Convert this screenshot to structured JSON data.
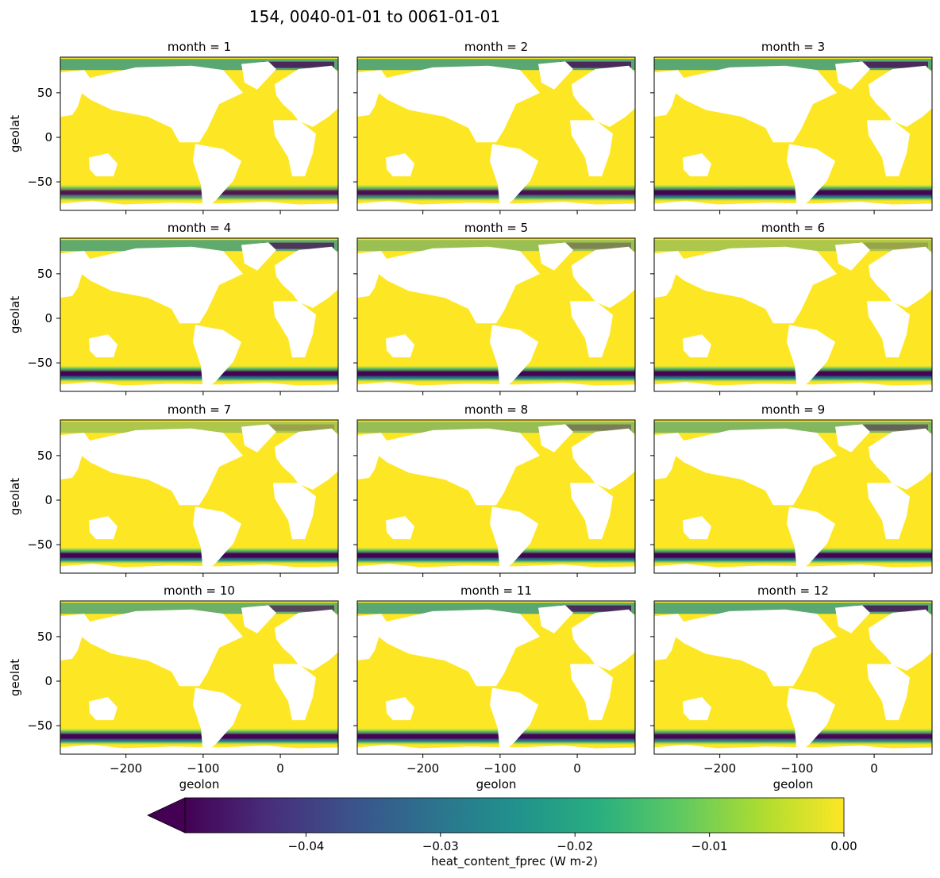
{
  "chart_data": {
    "type": "heatmap",
    "title": "154, 0040-01-01 to 0061-01-01",
    "facet_variable": "month",
    "panels": [
      {
        "title": "month = 1",
        "month": 1
      },
      {
        "title": "month = 2",
        "month": 2
      },
      {
        "title": "month = 3",
        "month": 3
      },
      {
        "title": "month = 4",
        "month": 4
      },
      {
        "title": "month = 5",
        "month": 5
      },
      {
        "title": "month = 6",
        "month": 6
      },
      {
        "title": "month = 7",
        "month": 7
      },
      {
        "title": "month = 8",
        "month": 8
      },
      {
        "title": "month = 9",
        "month": 9
      },
      {
        "title": "month = 10",
        "month": 10
      },
      {
        "title": "month = 11",
        "month": 11
      },
      {
        "title": "month = 12",
        "month": 12
      }
    ],
    "xlabel": "geolon",
    "ylabel": "geolat",
    "xlim": [
      -285,
      75
    ],
    "ylim": [
      -82,
      90
    ],
    "xticks": [
      -200,
      -100,
      0
    ],
    "xtick_labels": [
      "−200",
      "−100",
      "0"
    ],
    "yticks": [
      50,
      0,
      -50
    ],
    "ytick_labels": [
      "50",
      "0",
      "−50"
    ],
    "colorbar": {
      "label": "heat_content_fprec (W m-2)",
      "range": [
        -0.049,
        0.0
      ],
      "extend": "min",
      "colormap": "viridis",
      "ticks": [
        -0.04,
        -0.03,
        -0.02,
        -0.01,
        0.0
      ],
      "tick_labels": [
        "−0.04",
        "−0.03",
        "−0.02",
        "−0.01",
        "0.00"
      ]
    },
    "features": {
      "ocean_background_value": 0.0,
      "southern_ocean_band_min": [
        -0.035,
        -0.04,
        -0.049,
        -0.049,
        -0.049,
        -0.049,
        -0.049,
        -0.049,
        -0.049,
        -0.049,
        -0.049,
        -0.045
      ],
      "arctic_min": [
        -0.049,
        -0.049,
        -0.049,
        -0.045,
        -0.02,
        -0.012,
        -0.012,
        -0.022,
        -0.03,
        -0.04,
        -0.049,
        -0.049
      ]
    },
    "colors": {
      "viridis_dark": "#440154",
      "viridis_mid": "#21918c",
      "viridis_bright": "#fde725",
      "land": "#ffffff"
    }
  }
}
